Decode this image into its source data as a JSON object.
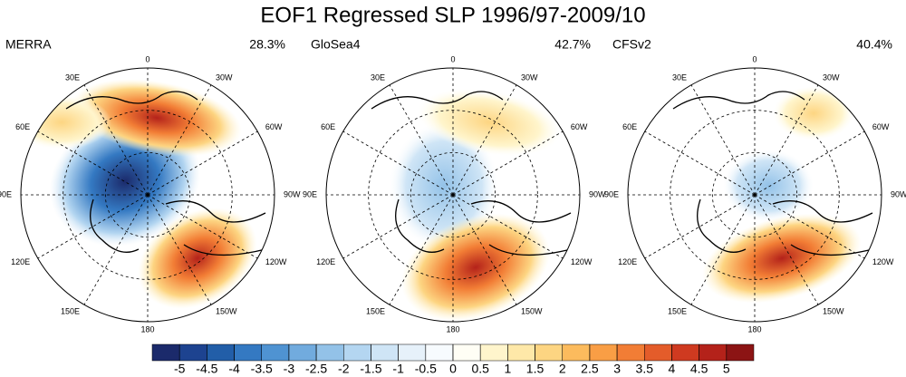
{
  "title": "EOF1 Regressed SLP 1996/97-2009/10",
  "panels": [
    {
      "name": "MERRA",
      "variance": "28.3%"
    },
    {
      "name": "GloSea4",
      "variance": "42.7%"
    },
    {
      "name": "CFSv2",
      "variance": "40.4%"
    }
  ],
  "lon_labels": [
    "0",
    "30W",
    "60W",
    "90W",
    "120W",
    "150W",
    "180",
    "150E",
    "120E",
    "90E",
    "60E",
    "30E"
  ],
  "colorbar": {
    "levels": [
      -5,
      -4.5,
      -4,
      -3.5,
      -3,
      -2.5,
      -2,
      -1.5,
      -1,
      -0.5,
      0,
      0.5,
      1,
      1.5,
      2,
      2.5,
      3,
      3.5,
      4,
      4.5,
      5
    ],
    "colors": [
      "#1b2a6b",
      "#1d4390",
      "#225ea8",
      "#3479c2",
      "#4f93d2",
      "#71abde",
      "#93c2e8",
      "#b4d6f1",
      "#cfe5f6",
      "#e6f1fa",
      "#f7fbfe",
      "#fffef5",
      "#fff5cc",
      "#fee8a8",
      "#fdd582",
      "#fcbb5d",
      "#f99e45",
      "#f27d35",
      "#e45c2a",
      "#cf3a20",
      "#b4221a",
      "#8c1414"
    ]
  }
}
